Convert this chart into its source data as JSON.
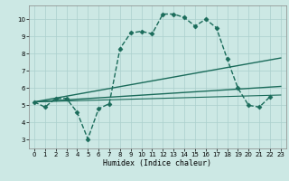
{
  "xlabel": "Humidex (Indice chaleur)",
  "background_color": "#cce8e4",
  "line_color": "#1a6b5a",
  "grid_color": "#aacfcc",
  "xlim": [
    -0.5,
    23.5
  ],
  "ylim": [
    2.5,
    10.8
  ],
  "yticks": [
    3,
    4,
    5,
    6,
    7,
    8,
    9,
    10
  ],
  "xticks": [
    0,
    1,
    2,
    3,
    4,
    5,
    6,
    7,
    8,
    9,
    10,
    11,
    12,
    13,
    14,
    15,
    16,
    17,
    18,
    19,
    20,
    21,
    22,
    23
  ],
  "curves": [
    {
      "x": [
        0,
        1,
        2,
        3,
        4,
        5,
        6,
        7,
        8,
        9,
        10,
        11,
        12,
        13,
        14,
        15,
        16,
        17,
        18,
        19,
        20,
        21,
        22
      ],
      "y": [
        5.2,
        4.9,
        5.4,
        5.4,
        4.6,
        3.05,
        4.8,
        5.1,
        8.3,
        9.2,
        9.3,
        9.15,
        10.3,
        10.3,
        10.1,
        9.6,
        10.0,
        9.5,
        7.7,
        6.0,
        5.0,
        4.9,
        5.5
      ],
      "marker": "D",
      "markersize": 2.5,
      "linestyle": "--",
      "linewidth": 1.0
    },
    {
      "x": [
        0,
        23
      ],
      "y": [
        5.2,
        7.75
      ],
      "marker": null,
      "markersize": 0,
      "linestyle": "-",
      "linewidth": 1.0
    },
    {
      "x": [
        0,
        23
      ],
      "y": [
        5.2,
        6.1
      ],
      "marker": null,
      "markersize": 0,
      "linestyle": "-",
      "linewidth": 1.0
    },
    {
      "x": [
        0,
        23
      ],
      "y": [
        5.2,
        5.6
      ],
      "marker": null,
      "markersize": 0,
      "linestyle": "-",
      "linewidth": 0.8
    }
  ]
}
